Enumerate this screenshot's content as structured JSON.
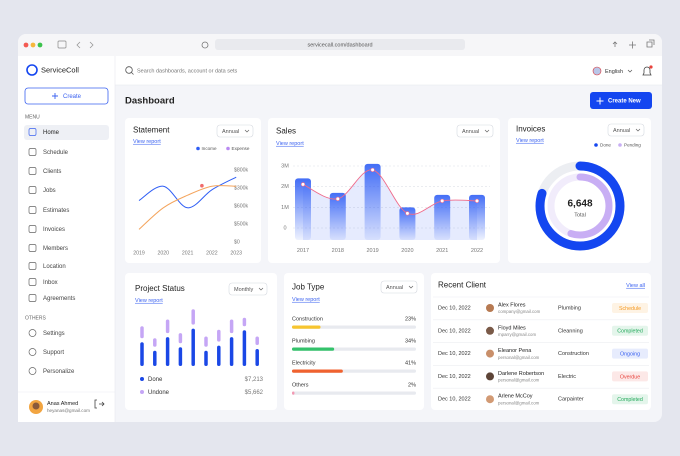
{
  "browser": {
    "url": "servicecall.com/dashboard"
  },
  "sidebar": {
    "logo": "ServiceColl",
    "create": "Create",
    "menu_heading": "MENU",
    "menu": [
      "Home",
      "Schedule",
      "Clients",
      "Jobs",
      "Estimates",
      "Invoices",
      "Members",
      "Location",
      "Inbox",
      "Agreements"
    ],
    "others_heading": "OTHERS",
    "others": [
      "Settings",
      "Support",
      "Personalize"
    ],
    "user": {
      "name": "Anas Ahmed",
      "email": "heyanas@gmail.com"
    }
  },
  "header": {
    "search_placeholder": "Search dashboards, account or data sets",
    "language": "English",
    "page_title": "Dashboard",
    "create_button": "Create New"
  },
  "statement": {
    "title": "Statement",
    "filter": "Annual",
    "link": "View report",
    "categories": [
      "2019",
      "2020",
      "2021",
      "2022",
      "2023"
    ],
    "y_labels": [
      "$800k",
      "$300k",
      "$600k",
      "$500k",
      "$0"
    ],
    "ylim": [
      0,
      4
    ],
    "series": [
      {
        "name": "Income",
        "color": "#2f5ef5",
        "line_color": "#2f5ef5",
        "values": [
          2.3,
          3.1,
          1.9,
          2.9,
          3.6
        ]
      },
      {
        "name": "Expense",
        "color": "#b98af2",
        "line_color": "#f4a45c",
        "values": [
          0.7,
          1.9,
          2.6,
          3.1,
          3.1
        ]
      }
    ]
  },
  "sales": {
    "title": "Sales",
    "filter": "Annual",
    "link": "View report",
    "categories": [
      "2017",
      "2018",
      "2019",
      "2020",
      "2021",
      "2022"
    ],
    "values": [
      2.4,
      1.7,
      3.1,
      1.0,
      1.6,
      1.6
    ],
    "ylim": [
      0,
      3
    ],
    "yticks": [
      {
        "value": 3,
        "label": "3M"
      },
      {
        "value": 2,
        "label": "2M"
      },
      {
        "value": 1,
        "label": "1M"
      },
      0
    ],
    "color": "#2f5ef5",
    "line_color": "#f06b8a"
  },
  "invoices": {
    "title": "Invoices",
    "filter": "Annual",
    "link": "View report",
    "total": "6,648",
    "total_label": "Total",
    "series": [
      {
        "name": "Done",
        "color": "#1446f0",
        "value": 80
      },
      {
        "name": "Pending",
        "color": "#c8aef4",
        "value": 55
      }
    ]
  },
  "project_status": {
    "title": "Project Status",
    "filter": "Monthly",
    "link": "View report",
    "ylim": [
      0,
      80
    ],
    "series": [
      {
        "name": "Done",
        "color": "#1a47e6",
        "amount": "$7,213",
        "values": [
          28,
          18,
          34,
          22,
          44,
          18,
          24,
          34,
          42,
          20
        ]
      },
      {
        "name": "Undone",
        "color": "#c5a6f5",
        "amount": "$5,662",
        "values": [
          14,
          10,
          16,
          12,
          18,
          12,
          14,
          16,
          10,
          10
        ]
      }
    ]
  },
  "job_type": {
    "title": "Job Type",
    "filter": "Annual",
    "link": "View report",
    "items": [
      {
        "name": "Construction",
        "value": 23,
        "label": "23%",
        "color": "#f7c52f"
      },
      {
        "name": "Plumbing",
        "value": 34,
        "label": "34%",
        "color": "#34c26b"
      },
      {
        "name": "Electricity",
        "value": 41,
        "label": "41%",
        "color": "#f0622f"
      },
      {
        "name": "Others",
        "value": 2,
        "label": "2%",
        "color": "#f39ab3"
      }
    ]
  },
  "recent_client": {
    "title": "Recent Client",
    "link": "View all",
    "rows": [
      {
        "date": "Dec 10, 2022",
        "name": "Alex Flores",
        "email": "company@gmail.com",
        "service": "Plumbing",
        "status": "Schedule",
        "status_color": "#f59a23"
      },
      {
        "date": "Dec 10, 2022",
        "name": "Floyd Miles",
        "email": "mparry@gmail.com",
        "service": "Cleanning",
        "status": "Completed",
        "status_color": "#22a95a"
      },
      {
        "date": "Dec 10, 2022",
        "name": "Eleanor Pena",
        "email": "personal@gmail.com",
        "service": "Construction",
        "status": "Ongoing",
        "status_color": "#3b62f0"
      },
      {
        "date": "Dec 10, 2022",
        "name": "Darlene Robertson",
        "email": "personal@gmail.com",
        "service": "Electric",
        "status": "Overdue",
        "status_color": "#e8423c"
      },
      {
        "date": "Dec 10, 2022",
        "name": "Arlene McCoy",
        "email": "personal@gmail.com",
        "service": "Carpainter",
        "status": "Completed",
        "status_color": "#22a95a"
      }
    ]
  }
}
